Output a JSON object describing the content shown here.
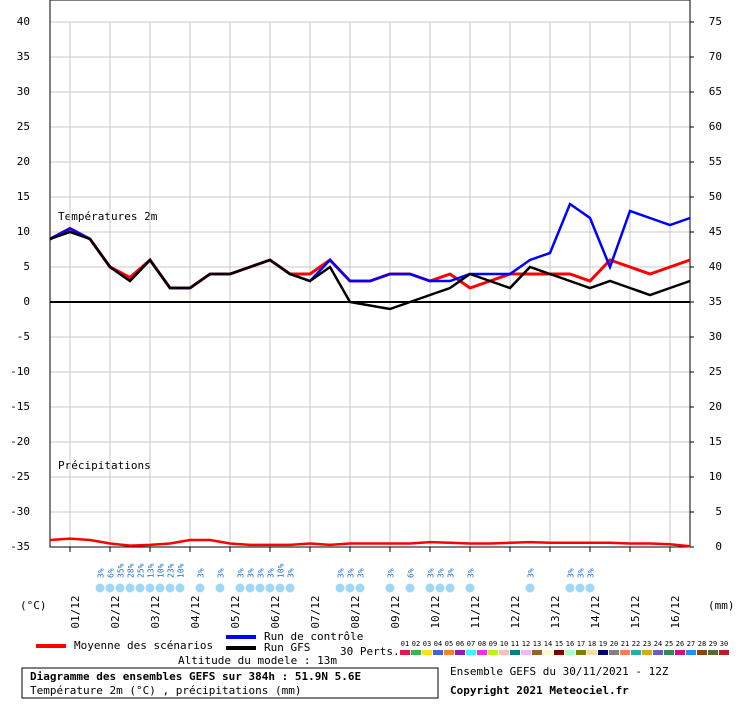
{
  "chart_data": {
    "type": "line",
    "ylabel": "(°C)",
    "y2label": "(mm)",
    "temp_label": "Températures 2m",
    "precip_label": "Précipitations",
    "x": [
      0,
      12,
      24,
      36,
      48,
      60,
      72,
      84,
      96,
      108,
      120,
      132,
      144,
      156,
      168,
      180,
      192,
      204,
      216,
      228,
      240,
      252,
      264,
      276,
      288,
      300,
      312,
      324,
      336,
      348,
      360,
      372,
      384
    ],
    "xlim": [
      0,
      384
    ],
    "xticks": [
      {
        "value": 12,
        "label": "01/12"
      },
      {
        "value": 36,
        "label": "02/12"
      },
      {
        "value": 60,
        "label": "03/12"
      },
      {
        "value": 84,
        "label": "04/12"
      },
      {
        "value": 108,
        "label": "05/12"
      },
      {
        "value": 132,
        "label": "06/12"
      },
      {
        "value": 156,
        "label": "07/12"
      },
      {
        "value": 180,
        "label": "08/12"
      },
      {
        "value": 204,
        "label": "09/12"
      },
      {
        "value": 228,
        "label": "10/12"
      },
      {
        "value": 252,
        "label": "11/12"
      },
      {
        "value": 276,
        "label": "12/12"
      },
      {
        "value": 300,
        "label": "13/12"
      },
      {
        "value": 324,
        "label": "14/12"
      },
      {
        "value": 348,
        "label": "15/12"
      },
      {
        "value": 372,
        "label": "16/12"
      }
    ],
    "ylim": [
      -35,
      40
    ],
    "yticks": [
      -35,
      -30,
      -25,
      -20,
      -15,
      -10,
      -5,
      0,
      5,
      10,
      15,
      20,
      25,
      30,
      35,
      40
    ],
    "y2lim": [
      0,
      75
    ],
    "y2ticks": [
      0,
      5,
      10,
      15,
      20,
      25,
      30,
      35,
      40,
      45,
      50,
      55,
      60,
      65,
      70,
      75
    ],
    "grid": true,
    "series": [
      {
        "name": "Moyenne des scénarios",
        "color": "#ff0000",
        "values": [
          9,
          10.5,
          9,
          5,
          3.5,
          6,
          2,
          2,
          4,
          4,
          5,
          6,
          4,
          4,
          6,
          3,
          3,
          4,
          4,
          3,
          4,
          2,
          3,
          4,
          4,
          4,
          4,
          3,
          6,
          5,
          4,
          5,
          6
        ]
      },
      {
        "name": "Run de contrôle",
        "color": "#0000ff",
        "values": [
          9,
          10.5,
          9,
          5,
          3,
          6,
          2,
          2,
          4,
          4,
          5,
          6,
          4,
          3,
          6,
          3,
          3,
          4,
          4,
          3,
          3,
          4,
          4,
          4,
          6,
          7,
          14,
          12,
          5,
          13,
          12,
          11,
          12
        ]
      },
      {
        "name": "Run GFS",
        "color": "#000000",
        "values": [
          9,
          10,
          9,
          5,
          3,
          6,
          2,
          2,
          4,
          4,
          5,
          6,
          4,
          3,
          5,
          0,
          -0.5,
          -1,
          0,
          1,
          2,
          4,
          3,
          2,
          5,
          4,
          3,
          2,
          3,
          2,
          1,
          2,
          3
        ]
      },
      {
        "color": "#ff0000",
        "axis": "y2",
        "values": [
          1,
          1.2,
          1,
          0.5,
          0.2,
          0.3,
          0.5,
          1,
          1,
          0.5,
          0.3,
          0.3,
          0.3,
          0.5,
          0.3,
          0.5,
          0.5,
          0.5,
          0.5,
          0.7,
          0.6,
          0.5,
          0.5,
          0.6,
          0.7,
          0.6,
          0.6,
          0.6,
          0.6,
          0.5,
          0.5,
          0.4,
          0.1
        ]
      }
    ],
    "snow": [
      {
        "x": 30,
        "label": "3%"
      },
      {
        "x": 36,
        "label": "6%"
      },
      {
        "x": 42,
        "label": "35%"
      },
      {
        "x": 48,
        "label": "28%"
      },
      {
        "x": 54,
        "label": "25%"
      },
      {
        "x": 60,
        "label": "13%"
      },
      {
        "x": 66,
        "label": "10%"
      },
      {
        "x": 72,
        "label": "23%"
      },
      {
        "x": 78,
        "label": "10%"
      },
      {
        "x": 90,
        "label": "3%"
      },
      {
        "x": 102,
        "label": "3%"
      },
      {
        "x": 114,
        "label": "3%"
      },
      {
        "x": 120,
        "label": "3%"
      },
      {
        "x": 126,
        "label": "3%"
      },
      {
        "x": 132,
        "label": "3%"
      },
      {
        "x": 138,
        "label": "10%"
      },
      {
        "x": 144,
        "label": "3%"
      },
      {
        "x": 174,
        "label": "3%"
      },
      {
        "x": 180,
        "label": "3%"
      },
      {
        "x": 186,
        "label": "3%"
      },
      {
        "x": 204,
        "label": "3%"
      },
      {
        "x": 216,
        "label": "6%"
      },
      {
        "x": 228,
        "label": "3%"
      },
      {
        "x": 234,
        "label": "3%"
      },
      {
        "x": 240,
        "label": "3%"
      },
      {
        "x": 252,
        "label": "3%"
      },
      {
        "x": 288,
        "label": "3%"
      },
      {
        "x": 312,
        "label": "3%"
      },
      {
        "x": 318,
        "label": "3%"
      },
      {
        "x": 324,
        "label": "3%"
      }
    ],
    "altitude": "Altitude du modele : 13m",
    "perts_label": "30 Perts.",
    "perturbations": [
      {
        "label": "01",
        "color": "#e6194b"
      },
      {
        "label": "02",
        "color": "#3cb44b"
      },
      {
        "label": "03",
        "color": "#ffe119"
      },
      {
        "label": "04",
        "color": "#4363d8"
      },
      {
        "label": "05",
        "color": "#f58231"
      },
      {
        "label": "06",
        "color": "#911eb4"
      },
      {
        "label": "07",
        "color": "#46f0f0"
      },
      {
        "label": "08",
        "color": "#f032e6"
      },
      {
        "label": "09",
        "color": "#bcf60c"
      },
      {
        "label": "10",
        "color": "#fabebe"
      },
      {
        "label": "11",
        "color": "#008080"
      },
      {
        "label": "12",
        "color": "#e6beff"
      },
      {
        "label": "13",
        "color": "#9a6324"
      },
      {
        "label": "14",
        "color": "#fffac8"
      },
      {
        "label": "15",
        "color": "#800000"
      },
      {
        "label": "16",
        "color": "#aaffc3"
      },
      {
        "label": "17",
        "color": "#808000"
      },
      {
        "label": "18",
        "color": "#ffd8b1"
      },
      {
        "label": "19",
        "color": "#000075"
      },
      {
        "label": "20",
        "color": "#808080"
      },
      {
        "label": "21",
        "color": "#ff7f50"
      },
      {
        "label": "22",
        "color": "#20b2aa"
      },
      {
        "label": "23",
        "color": "#daa520"
      },
      {
        "label": "24",
        "color": "#6a5acd"
      },
      {
        "label": "25",
        "color": "#2e8b57"
      },
      {
        "label": "26",
        "color": "#c71585"
      },
      {
        "label": "27",
        "color": "#1e90ff"
      },
      {
        "label": "28",
        "color": "#8b4513"
      },
      {
        "label": "29",
        "color": "#556b2f"
      },
      {
        "label": "30",
        "color": "#b22222"
      }
    ],
    "footer_title": "Diagramme des ensembles GEFS sur 384h : 51.9N 5.6E",
    "footer_subtitle": "Température 2m (°C) , précipitations (mm)",
    "run_info": "Ensemble GEFS du 30/11/2021 - 12Z",
    "copyright": "Copyright 2021 Meteociel.fr"
  }
}
